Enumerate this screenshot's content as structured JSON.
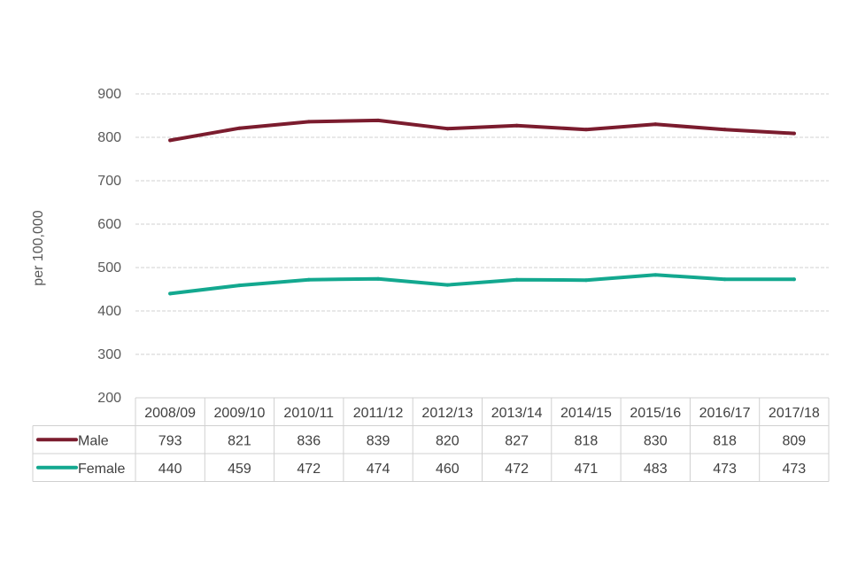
{
  "chart_data": {
    "type": "line",
    "title": "",
    "xlabel": "",
    "ylabel": "per 100,000",
    "ylim": [
      200,
      900
    ],
    "yticks": [
      200,
      300,
      400,
      500,
      600,
      700,
      800,
      900
    ],
    "grid": true,
    "legend": "data-table",
    "categories": [
      "2008/09",
      "2009/10",
      "2010/11",
      "2011/12",
      "2012/13",
      "2013/14",
      "2014/15",
      "2015/16",
      "2016/17",
      "2017/18"
    ],
    "series": [
      {
        "name": "Male",
        "color": "#7b1c2e",
        "values": [
          793,
          821,
          836,
          839,
          820,
          827,
          818,
          830,
          818,
          809
        ],
        "table_values": [
          "793",
          "821",
          "836",
          "839",
          "820",
          "827",
          "818",
          "830",
          "818",
          "809"
        ]
      },
      {
        "name": "Female",
        "color": "#13a88f",
        "values": [
          440,
          459,
          472,
          474,
          460,
          472,
          471,
          483,
          473,
          473
        ],
        "table_values": [
          "440",
          "459",
          "472",
          "474",
          "460",
          "472",
          "471",
          "483",
          "473",
          "473"
        ]
      }
    ]
  }
}
